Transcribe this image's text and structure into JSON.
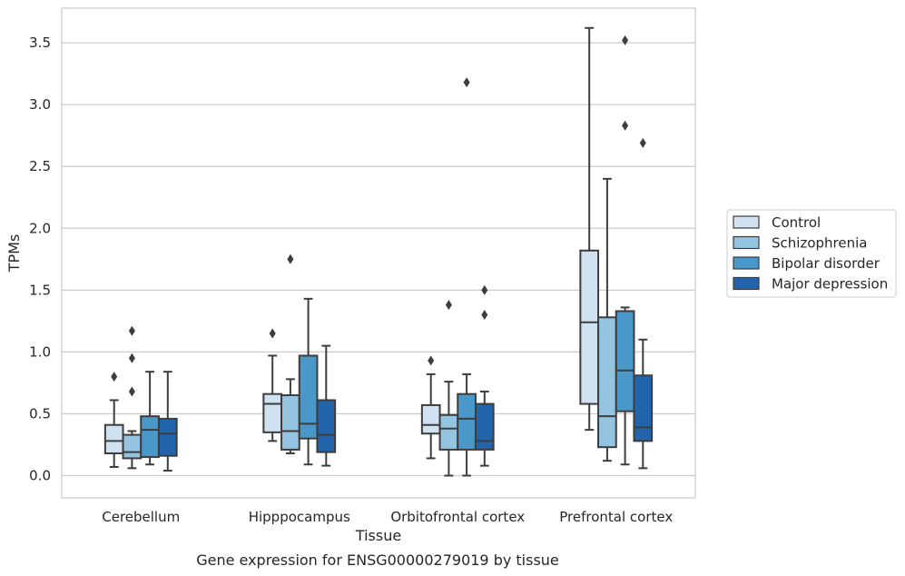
{
  "chart_data": {
    "type": "box",
    "title": "",
    "xlabel": "Tissue",
    "ylabel": "TPMs",
    "caption": "Gene expression for ENSG00000279019 by tissue",
    "categories": [
      "Cerebellum",
      "Hipppocampus",
      "Orbitofrontal cortex",
      "Prefrontal cortex"
    ],
    "ylim": [
      -0.18,
      3.78
    ],
    "yticks": [
      0.0,
      0.5,
      1.0,
      1.5,
      2.0,
      2.5,
      3.0,
      3.5
    ],
    "ytick_labels": [
      "0.0",
      "0.5",
      "1.0",
      "1.5",
      "2.0",
      "2.5",
      "3.0",
      "3.5"
    ],
    "grid": "horizontal",
    "legend_position": "right",
    "series": [
      {
        "name": "Control",
        "color": "#d0e1f2",
        "boxes": [
          {
            "whislo": 0.07,
            "q1": 0.18,
            "med": 0.28,
            "q3": 0.41,
            "whishi": 0.61,
            "fliers": [
              0.8
            ]
          },
          {
            "whislo": 0.28,
            "q1": 0.35,
            "med": 0.58,
            "q3": 0.66,
            "whishi": 0.97,
            "fliers": [
              1.15
            ]
          },
          {
            "whislo": 0.14,
            "q1": 0.34,
            "med": 0.41,
            "q3": 0.57,
            "whishi": 0.82,
            "fliers": [
              0.93
            ]
          },
          {
            "whislo": 0.37,
            "q1": 0.58,
            "med": 1.24,
            "q3": 1.82,
            "whishi": 3.62,
            "fliers": []
          }
        ]
      },
      {
        "name": "Schizophrenia",
        "color": "#94c4df",
        "boxes": [
          {
            "whislo": 0.06,
            "q1": 0.14,
            "med": 0.19,
            "q3": 0.33,
            "whishi": 0.36,
            "fliers": [
              0.68,
              0.95,
              1.17
            ]
          },
          {
            "whislo": 0.18,
            "q1": 0.21,
            "med": 0.36,
            "q3": 0.65,
            "whishi": 0.78,
            "fliers": [
              1.75
            ]
          },
          {
            "whislo": 0.0,
            "q1": 0.21,
            "med": 0.38,
            "q3": 0.49,
            "whishi": 0.76,
            "fliers": [
              1.38
            ]
          },
          {
            "whislo": 0.12,
            "q1": 0.23,
            "med": 0.48,
            "q3": 1.28,
            "whishi": 2.4,
            "fliers": []
          }
        ]
      },
      {
        "name": "Bipolar disorder",
        "color": "#4a98c9",
        "boxes": [
          {
            "whislo": 0.09,
            "q1": 0.15,
            "med": 0.37,
            "q3": 0.48,
            "whishi": 0.84,
            "fliers": []
          },
          {
            "whislo": 0.09,
            "q1": 0.3,
            "med": 0.42,
            "q3": 0.97,
            "whishi": 1.43,
            "fliers": []
          },
          {
            "whislo": 0.0,
            "q1": 0.21,
            "med": 0.46,
            "q3": 0.66,
            "whishi": 0.82,
            "fliers": [
              3.18
            ]
          },
          {
            "whislo": 0.09,
            "q1": 0.52,
            "med": 0.85,
            "q3": 1.33,
            "whishi": 1.36,
            "fliers": [
              2.83,
              3.52
            ]
          }
        ]
      },
      {
        "name": "Major depression",
        "color": "#2164ab",
        "boxes": [
          {
            "whislo": 0.04,
            "q1": 0.16,
            "med": 0.34,
            "q3": 0.46,
            "whishi": 0.84,
            "fliers": []
          },
          {
            "whislo": 0.08,
            "q1": 0.19,
            "med": 0.33,
            "q3": 0.61,
            "whishi": 1.05,
            "fliers": []
          },
          {
            "whislo": 0.08,
            "q1": 0.21,
            "med": 0.28,
            "q3": 0.58,
            "whishi": 0.68,
            "fliers": [
              1.3,
              1.5
            ]
          },
          {
            "whislo": 0.06,
            "q1": 0.28,
            "med": 0.39,
            "q3": 0.81,
            "whishi": 1.1,
            "fliers": [
              2.69
            ]
          }
        ]
      }
    ]
  }
}
